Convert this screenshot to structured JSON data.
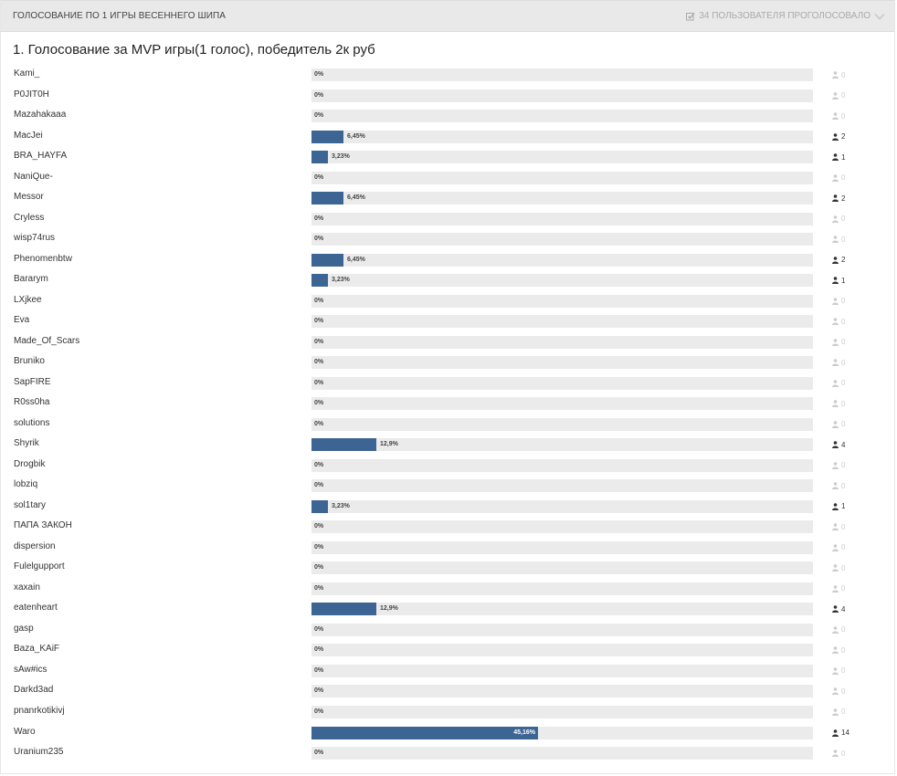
{
  "poll": {
    "title": "ГОЛОСОВАНИЕ ПО 1 ИГРЫ ВЕСЕННЕГО ШИПА",
    "voters_label": "34 ПОЛЬЗОВАТЕЛЯ ПРОГОЛОСОВАЛО",
    "question": "1. Голосование за MVP игры(1 голос), победитель 2к руб",
    "colors": {
      "bar": "#3d6594",
      "track": "#ebebeb",
      "header": "#e9e9e9"
    },
    "options": [
      {
        "name": "Kami_",
        "percent_label": "0%",
        "percent": 0,
        "votes": "0"
      },
      {
        "name": "P0JIT0H",
        "percent_label": "0%",
        "percent": 0,
        "votes": "0"
      },
      {
        "name": "Mazahakaaa",
        "percent_label": "0%",
        "percent": 0,
        "votes": "0"
      },
      {
        "name": "MacJei",
        "percent_label": "6,45%",
        "percent": 6.45,
        "votes": "2"
      },
      {
        "name": "BRA_HAYFA",
        "percent_label": "3,23%",
        "percent": 3.23,
        "votes": "1"
      },
      {
        "name": "NaniQue-",
        "percent_label": "0%",
        "percent": 0,
        "votes": "0"
      },
      {
        "name": "Messor",
        "percent_label": "6,45%",
        "percent": 6.45,
        "votes": "2"
      },
      {
        "name": "Cryless",
        "percent_label": "0%",
        "percent": 0,
        "votes": "0"
      },
      {
        "name": "wisp74rus",
        "percent_label": "0%",
        "percent": 0,
        "votes": "0"
      },
      {
        "name": "Phenomenbtw",
        "percent_label": "6,45%",
        "percent": 6.45,
        "votes": "2"
      },
      {
        "name": "Bararym",
        "percent_label": "3,23%",
        "percent": 3.23,
        "votes": "1"
      },
      {
        "name": "LXjkee",
        "percent_label": "0%",
        "percent": 0,
        "votes": "0"
      },
      {
        "name": "Eva",
        "percent_label": "0%",
        "percent": 0,
        "votes": "0"
      },
      {
        "name": "Made_Of_Scars",
        "percent_label": "0%",
        "percent": 0,
        "votes": "0"
      },
      {
        "name": "Bruniko",
        "percent_label": "0%",
        "percent": 0,
        "votes": "0"
      },
      {
        "name": "SapFIRE",
        "percent_label": "0%",
        "percent": 0,
        "votes": "0"
      },
      {
        "name": "R0ss0ha",
        "percent_label": "0%",
        "percent": 0,
        "votes": "0"
      },
      {
        "name": "solutions",
        "percent_label": "0%",
        "percent": 0,
        "votes": "0"
      },
      {
        "name": "Shyrik",
        "percent_label": "12,9%",
        "percent": 12.9,
        "votes": "4"
      },
      {
        "name": "Drogbik",
        "percent_label": "0%",
        "percent": 0,
        "votes": "0"
      },
      {
        "name": "lobziq",
        "percent_label": "0%",
        "percent": 0,
        "votes": "0"
      },
      {
        "name": "sol1tary",
        "percent_label": "3,23%",
        "percent": 3.23,
        "votes": "1"
      },
      {
        "name": "ПАПА ЗАКОН",
        "percent_label": "0%",
        "percent": 0,
        "votes": "0"
      },
      {
        "name": "dispersion",
        "percent_label": "0%",
        "percent": 0,
        "votes": "0"
      },
      {
        "name": "Fulelgupport",
        "percent_label": "0%",
        "percent": 0,
        "votes": "0"
      },
      {
        "name": "xaxain",
        "percent_label": "0%",
        "percent": 0,
        "votes": "0"
      },
      {
        "name": "eatenheart",
        "percent_label": "12,9%",
        "percent": 12.9,
        "votes": "4"
      },
      {
        "name": "gasp",
        "percent_label": "0%",
        "percent": 0,
        "votes": "0"
      },
      {
        "name": "Baza_KAiF",
        "percent_label": "0%",
        "percent": 0,
        "votes": "0"
      },
      {
        "name": "sAw#ics",
        "percent_label": "0%",
        "percent": 0,
        "votes": "0"
      },
      {
        "name": "Darkd3ad",
        "percent_label": "0%",
        "percent": 0,
        "votes": "0"
      },
      {
        "name": "pnanrkotikivj",
        "percent_label": "0%",
        "percent": 0,
        "votes": "0"
      },
      {
        "name": "Waro",
        "percent_label": "45,16%",
        "percent": 45.16,
        "votes": "14"
      },
      {
        "name": "Uranium235",
        "percent_label": "0%",
        "percent": 0,
        "votes": "0"
      }
    ]
  }
}
